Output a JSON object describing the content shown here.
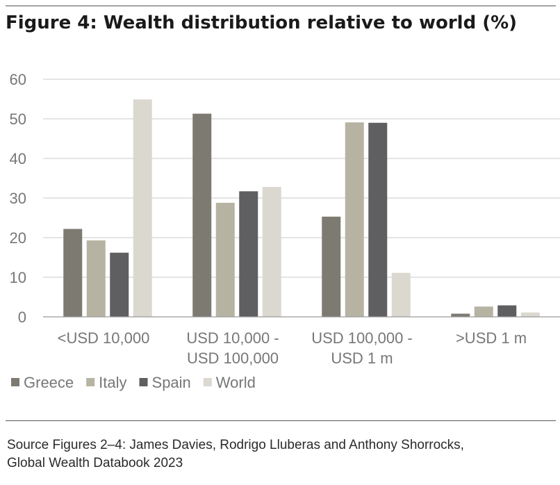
{
  "title": "Figure 4: Wealth distribution relative to world (%)",
  "source": {
    "line1": "Source Figures 2–4: James Davies, Rodrigo Lluberas and Anthony Shorrocks,",
    "line2": "Global Wealth Databook 2023"
  },
  "colors": {
    "Greece": "#7d7a72",
    "Italy": "#b7b3a3",
    "Spain": "#5f5f62",
    "World": "#dbd8d0",
    "grid": "#c8c8c8",
    "axis": "#9a9a9a"
  },
  "chart_data": {
    "type": "bar",
    "title": "Figure 4: Wealth distribution relative to world (%)",
    "categories": [
      [
        "<USD 10,000"
      ],
      [
        "USD 10,000 -",
        "USD 100,000"
      ],
      [
        "USD 100,000 -",
        "USD 1 m"
      ],
      [
        ">USD 1 m"
      ]
    ],
    "series": [
      {
        "name": "Greece",
        "values": [
          22.2,
          51.3,
          25.3,
          0.8
        ]
      },
      {
        "name": "Italy",
        "values": [
          19.3,
          28.8,
          49.1,
          2.6
        ]
      },
      {
        "name": "Spain",
        "values": [
          16.2,
          31.7,
          49.0,
          2.9
        ]
      },
      {
        "name": "World",
        "values": [
          54.9,
          32.8,
          11.1,
          1.1
        ]
      }
    ],
    "yticks": [
      "0",
      "10",
      "20",
      "30",
      "40",
      "50",
      "60"
    ],
    "ylim": [
      0,
      60
    ],
    "grid": true,
    "legend_position": "bottom-left"
  }
}
